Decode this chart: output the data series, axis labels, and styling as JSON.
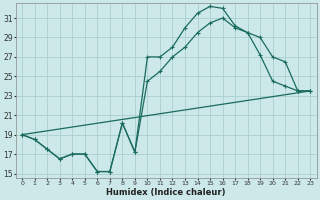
{
  "xlabel": "Humidex (Indice chaleur)",
  "bg_color": "#cce8e8",
  "line_color": "#1a6b60",
  "grid_color": "#aacfcf",
  "xlim": [
    -0.5,
    23.5
  ],
  "ylim": [
    14.5,
    32.5
  ],
  "yticks": [
    15,
    17,
    19,
    21,
    23,
    25,
    27,
    29,
    31
  ],
  "xticks": [
    0,
    1,
    2,
    3,
    4,
    5,
    6,
    7,
    8,
    9,
    10,
    11,
    12,
    13,
    14,
    15,
    16,
    17,
    18,
    19,
    20,
    21,
    22,
    23
  ],
  "line1_x": [
    0,
    1,
    2,
    3,
    4,
    5,
    6,
    7,
    8,
    9,
    10,
    11,
    12,
    13,
    14,
    15,
    16,
    17,
    18,
    19,
    20,
    21,
    22,
    23
  ],
  "line1_y": [
    19.0,
    18.5,
    17.5,
    16.5,
    17.0,
    17.0,
    15.2,
    15.2,
    20.2,
    17.2,
    27.0,
    27.0,
    28.0,
    30.0,
    31.5,
    32.2,
    32.0,
    30.2,
    29.5,
    27.2,
    24.5,
    24.0,
    23.5,
    23.5
  ],
  "line2_x": [
    0,
    1,
    2,
    3,
    4,
    5,
    6,
    7,
    8,
    9,
    10,
    11,
    12,
    13,
    14,
    15,
    16,
    17,
    18,
    19,
    20,
    21,
    22,
    23
  ],
  "line2_y": [
    19.0,
    18.5,
    17.5,
    16.5,
    17.0,
    17.0,
    15.2,
    15.2,
    20.2,
    17.2,
    24.5,
    25.5,
    27.0,
    28.0,
    29.5,
    30.5,
    31.0,
    30.0,
    29.5,
    29.0,
    27.0,
    26.5,
    23.5,
    23.5
  ],
  "line3_x": [
    0,
    23
  ],
  "line3_y": [
    19.0,
    23.5
  ]
}
